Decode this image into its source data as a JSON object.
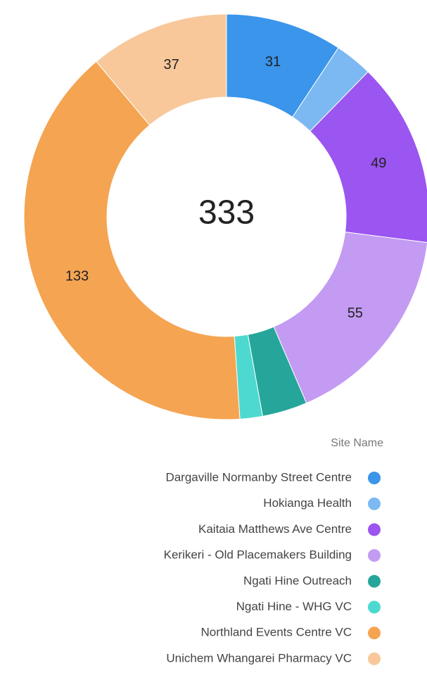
{
  "chart_data": {
    "type": "donut",
    "categories": [
      "Dargaville Normanby Street Centre",
      "Hokianga Health",
      "Kaitaia Matthews Ave Centre",
      "Kerikeri - Old Placemakers Building",
      "Ngati Hine Outreach",
      "Ngati Hine - WHG VC",
      "Northland Events Centre VC",
      "Unichem Whangarei Pharmacy VC"
    ],
    "values": [
      31,
      10,
      49,
      55,
      12,
      6,
      133,
      37
    ],
    "value_labels": [
      "31",
      null,
      "49",
      "55",
      null,
      null,
      "133",
      "37"
    ],
    "colors": [
      "#3a95eb",
      "#7cb9f2",
      "#9b55f0",
      "#c39bf2",
      "#26a69a",
      "#4dd9cf",
      "#f5a452",
      "#f8c89a"
    ],
    "total": 333,
    "legend_title": "Site Name"
  }
}
